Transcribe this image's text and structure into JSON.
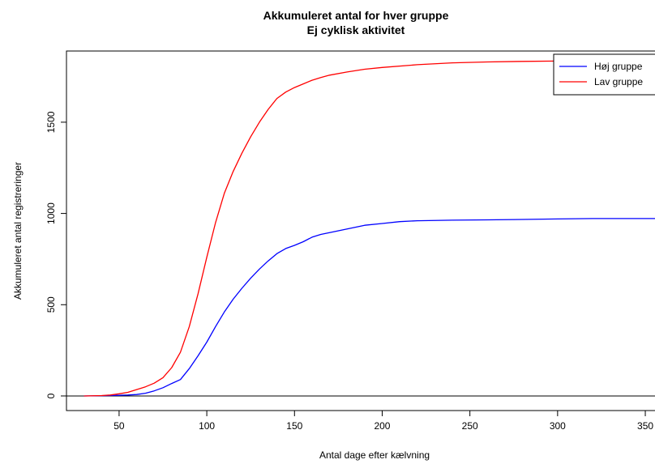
{
  "chart_data": {
    "type": "line",
    "title": "Akkumuleret antal for hver gruppe",
    "subtitle": "Ej cyklisk aktivitet",
    "xlabel": "Antal dage efter kælvning",
    "ylabel": "Akkumuleret antal registreringer",
    "xlim": [
      20,
      362
    ],
    "ylim": [
      -80,
      1890
    ],
    "xticks": [
      50,
      100,
      150,
      200,
      250,
      300,
      350
    ],
    "yticks": [
      0,
      500,
      1000,
      1500
    ],
    "hline": 0,
    "legend_position": "top-right",
    "series": [
      {
        "name": "Høj gruppe",
        "color": "#0000ff",
        "x": [
          30,
          45,
          55,
          60,
          65,
          70,
          75,
          80,
          85,
          90,
          95,
          100,
          105,
          110,
          115,
          120,
          125,
          130,
          135,
          140,
          145,
          150,
          155,
          160,
          165,
          170,
          180,
          190,
          200,
          210,
          220,
          240,
          260,
          280,
          300,
          320,
          362
        ],
        "y": [
          0,
          2,
          5,
          8,
          15,
          28,
          45,
          68,
          90,
          150,
          220,
          295,
          380,
          460,
          530,
          590,
          645,
          695,
          740,
          780,
          808,
          825,
          845,
          870,
          885,
          895,
          915,
          935,
          945,
          955,
          960,
          963,
          965,
          967,
          970,
          972,
          972
        ]
      },
      {
        "name": "Lav gruppe",
        "color": "#ff0000",
        "x": [
          30,
          40,
          45,
          50,
          55,
          60,
          65,
          70,
          75,
          80,
          85,
          90,
          95,
          100,
          105,
          110,
          115,
          120,
          125,
          130,
          135,
          140,
          145,
          150,
          155,
          160,
          165,
          170,
          180,
          190,
          200,
          220,
          240,
          260,
          280,
          300,
          330,
          362
        ],
        "y": [
          0,
          2,
          5,
          12,
          20,
          35,
          50,
          70,
          100,
          155,
          240,
          380,
          560,
          760,
          950,
          1110,
          1230,
          1330,
          1420,
          1500,
          1570,
          1630,
          1665,
          1690,
          1710,
          1730,
          1745,
          1758,
          1775,
          1790,
          1800,
          1815,
          1825,
          1830,
          1833,
          1835,
          1836,
          1836
        ]
      }
    ]
  }
}
